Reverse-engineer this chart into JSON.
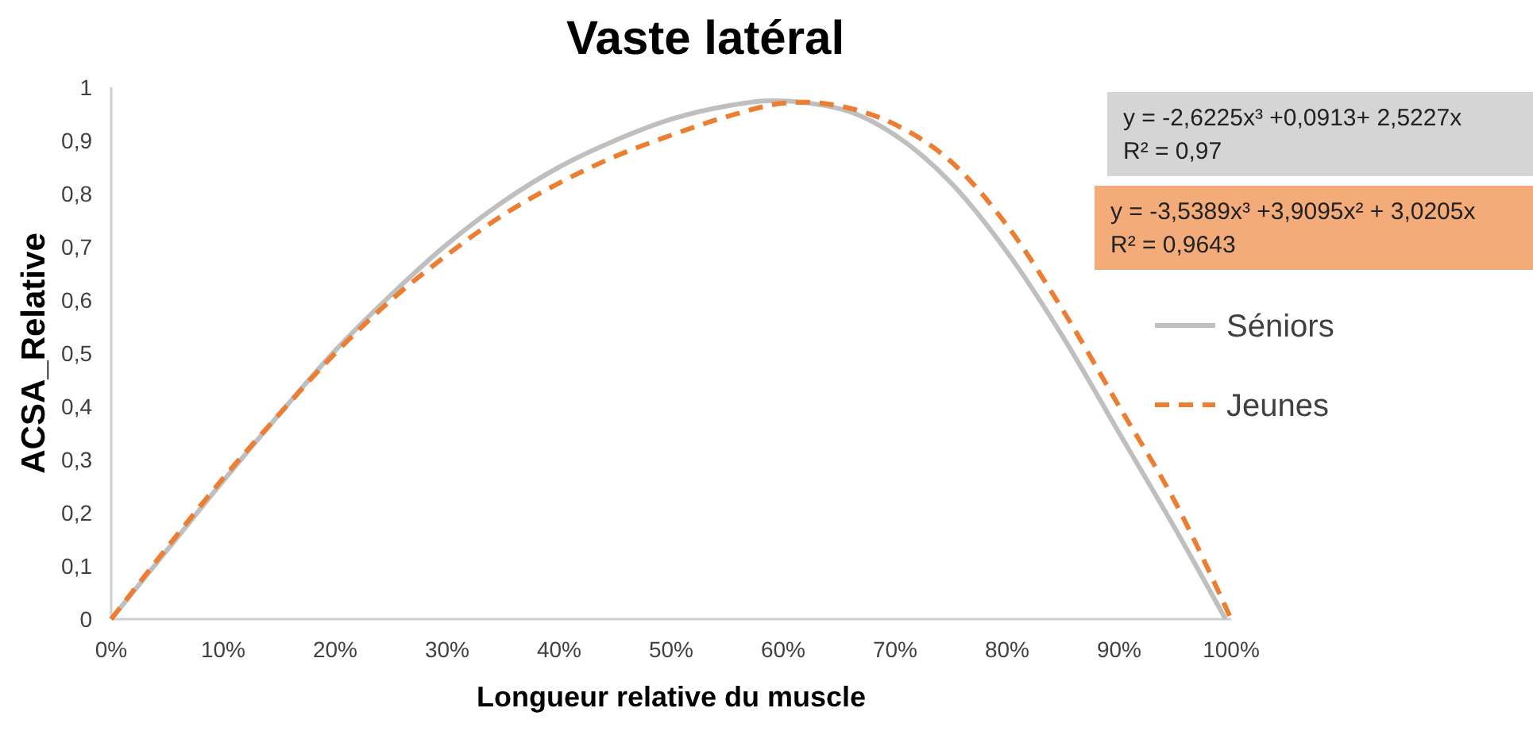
{
  "chart_data": {
    "type": "line",
    "title": "Vaste latéral",
    "xlabel": "Longueur relative du muscle",
    "ylabel": "ACSA_Relative",
    "xlim": [
      0,
      1
    ],
    "xticks": [
      {
        "value": 0,
        "label": "0%"
      },
      {
        "value": 0.1,
        "label": "10%"
      },
      {
        "value": 0.2,
        "label": "20%"
      },
      {
        "value": 0.3,
        "label": "30%"
      },
      {
        "value": 0.4,
        "label": "40%"
      },
      {
        "value": 0.5,
        "label": "50%"
      },
      {
        "value": 0.6,
        "label": "60%"
      },
      {
        "value": 0.7,
        "label": "70%"
      },
      {
        "value": 0.8,
        "label": "80%"
      },
      {
        "value": 0.9,
        "label": "90%"
      },
      {
        "value": 1,
        "label": "100%"
      }
    ],
    "ylim": [
      0,
      1
    ],
    "yticks": [
      0,
      {
        "value": 0.1,
        "label": "0,1"
      },
      {
        "value": 0.2,
        "label": "0,2"
      },
      {
        "value": 0.3,
        "label": "0,3"
      },
      {
        "value": 0.4,
        "label": "0,4"
      },
      {
        "value": 0.5,
        "label": "0,5"
      },
      {
        "value": 0.6,
        "label": "0,6"
      },
      {
        "value": 0.7,
        "label": "0,7"
      },
      {
        "value": 0.8,
        "label": "0,8"
      },
      {
        "value": 0.9,
        "label": "0,9"
      },
      1
    ],
    "grid": false,
    "legend": "right",
    "marker": "none",
    "series": [
      {
        "name": "Séniors",
        "color": "#bfbfbf",
        "line_style": "solid",
        "x": [
          0,
          0.05,
          0.1,
          0.15,
          0.2,
          0.25,
          0.3,
          0.35,
          0.4,
          0.45,
          0.5,
          0.55,
          0.59,
          0.65,
          0.7,
          0.75,
          0.8,
          0.85,
          0.9,
          0.95,
          0.995
        ],
        "values": [
          0,
          0.13,
          0.26,
          0.385,
          0.505,
          0.61,
          0.705,
          0.785,
          0.85,
          0.9,
          0.94,
          0.965,
          0.975,
          0.96,
          0.91,
          0.82,
          0.69,
          0.53,
          0.35,
          0.17,
          0
        ]
      },
      {
        "name": "Jeunes",
        "color": "#ed7d31",
        "line_style": "dashed",
        "x": [
          0,
          0.05,
          0.1,
          0.15,
          0.2,
          0.25,
          0.3,
          0.35,
          0.4,
          0.45,
          0.5,
          0.55,
          0.6,
          0.62,
          0.65,
          0.7,
          0.75,
          0.8,
          0.85,
          0.9,
          0.95,
          1
        ],
        "values": [
          0,
          0.135,
          0.265,
          0.385,
          0.5,
          0.6,
          0.685,
          0.76,
          0.82,
          0.87,
          0.91,
          0.945,
          0.97,
          0.972,
          0.965,
          0.93,
          0.86,
          0.74,
          0.58,
          0.4,
          0.22,
          0
        ]
      }
    ],
    "annotations": [
      "y = -2,6225x³ +0,0913+ 2,5227x\nR² = 0,97",
      "y = -3,5389x³ +3,9095x² + 3,0205x\nR² = 0,9643"
    ]
  }
}
